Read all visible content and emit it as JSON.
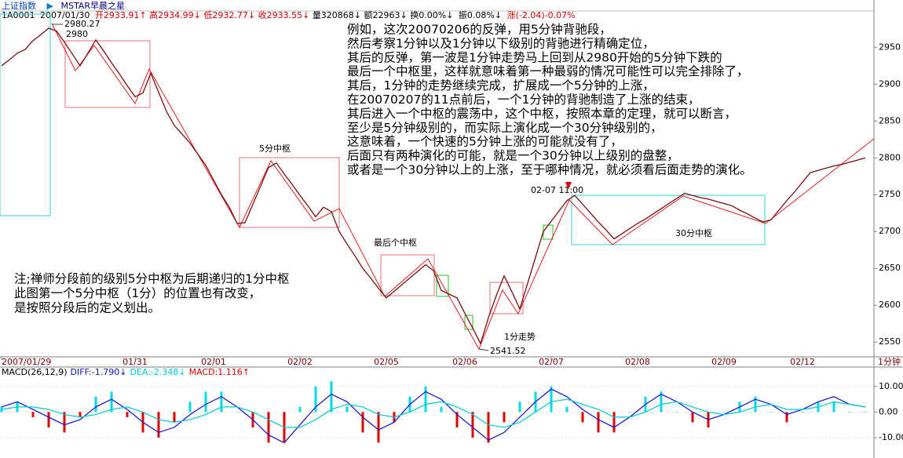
{
  "header": {
    "index_name": "上证指数",
    "arrow": "▶",
    "indicator": "MSTAR早晨之星",
    "quote": {
      "code": "1A0001",
      "date": "2007/01/30",
      "open": "开2933.91↑",
      "high": "高2934.99↓",
      "low": "低2932.77↓",
      "close": "收2933.55↓",
      "volume": "量320868↓",
      "amount": "额22963↓",
      "turnover": "换0.00%↓",
      "amplitude": "振0.08%↓",
      "change": "涨(-2.04)-0.07%"
    }
  },
  "chart_data": [
    {
      "type": "line",
      "period": "1分钟",
      "categories": [
        "2007/01/29",
        null,
        null,
        null,
        null,
        null,
        null,
        null,
        null,
        null,
        null,
        null,
        null,
        null,
        null,
        null,
        null,
        "01/31",
        null,
        null,
        null,
        null,
        null,
        null,
        null,
        null,
        null,
        "02/01",
        null,
        null,
        null,
        null,
        null,
        null,
        null,
        null,
        null,
        null,
        "02/02",
        null,
        null,
        null,
        null,
        null,
        null,
        null,
        null,
        null,
        null,
        "02/05",
        null,
        null,
        null,
        null,
        null,
        null,
        null,
        null,
        null,
        "02/06",
        null,
        null,
        null,
        null,
        null,
        null,
        null,
        null,
        null,
        null,
        "02/07",
        null,
        null,
        null,
        null,
        null,
        null,
        null,
        null,
        null,
        null,
        "02/08",
        null,
        null,
        null,
        null,
        null,
        null,
        null,
        null,
        null,
        null,
        "02/09",
        null,
        null,
        null,
        null,
        null,
        null,
        null,
        null,
        null,
        "02/12",
        null,
        null,
        null,
        null,
        null,
        null,
        null,
        null
      ],
      "series": [
        {
          "name": "上证指数",
          "color": "#7a1010",
          "values": [
            2925,
            2933,
            2942,
            2947,
            2959,
            2967,
            2976,
            2972,
            2957,
            2941,
            2925,
            2942,
            2960,
            2945,
            2929,
            2914,
            2898,
            2883,
            2888,
            2915,
            2889,
            2863,
            2844,
            2832,
            2820,
            2805,
            2790,
            2770,
            2750,
            2733,
            2711,
            2712,
            2737,
            2762,
            2787,
            2793,
            2778,
            2764,
            2749,
            2735,
            2720,
            2733,
            2727,
            2700,
            2683,
            2667,
            2650,
            2637,
            2623,
            2610,
            2619,
            2628,
            2637,
            2646,
            2655,
            2647,
            2620,
            2615,
            2610,
            2589,
            2569,
            2548,
            2583,
            2613,
            2640,
            2618,
            2595,
            2630,
            2665,
            2700,
            2714,
            2728,
            2742,
            2749,
            2737,
            2725,
            2713,
            2702,
            2690,
            2697,
            2704,
            2711,
            2717,
            2724,
            2731,
            2738,
            2745,
            2752,
            2749,
            2746,
            2744,
            2741,
            2738,
            2735,
            2729,
            2724,
            2718,
            2713,
            2716,
            2729,
            2742,
            2754,
            2767,
            2780,
            2783,
            2786,
            2789,
            2791,
            2794,
            2797,
            2800
          ]
        }
      ],
      "ylim": [
        2530,
        2995
      ],
      "yticks": [
        2550,
        2600,
        2650,
        2700,
        2750,
        2800,
        2850,
        2900,
        2950
      ],
      "annotations": {
        "commentary": [
          "例如，这次20070206的反弹，用5分钟背驰段，",
          "然后考察1分钟以及1分钟以下级别的背驰进行精确定位，",
          "其后的反弹，第一波是1分钟走势马上回到从2980开始的5分钟下跌的",
          "最后一个中枢里，这样就意味着第一种最弱的情况可能性可以完全排除了，",
          "其后，1分钟的走势继续完成，扩展成一个5分钟的上涨，",
          "在20070207的11点前后，一个1分钟的背驰制造了上涨的结束，",
          "其后进入一个中枢的震荡中，这个中枢，按照本章的定理，就可以断言，",
          "至少是5分钟级别的，而实际上演化成一个30分钟级别的，",
          "这意味着，一个快速的5分钟上涨的可能就没有了，",
          "后面只有两种演化的可能，就是一个30分钟以上级别的盘整，",
          "或者是一个30分钟以上的上涨，至于哪种情况，就必须看后面走势的演化。"
        ],
        "note": [
          "注;禅师分段前的级别5分中枢为后期递归的1分中枢",
          "此图第一个5分中枢（1分）的位置也有改变，",
          "是按照分段后的定义划出。"
        ],
        "labels": [
          "2980.27",
          "2980",
          "5分中枢",
          "最后个中枢",
          "02-07 11:00",
          "30分中枢",
          "1分走势",
          "2541.52"
        ]
      }
    },
    {
      "type": "macd",
      "title": "MACD(26,12,9)",
      "series": [
        {
          "name": "DIFF:-1.790↓",
          "color": "#1010d0",
          "values": [
            2,
            4,
            1,
            -2,
            -5,
            -3,
            2,
            5,
            1,
            -4,
            -8,
            -6,
            -1,
            3,
            6,
            2,
            -3,
            -9,
            -12,
            -5,
            2,
            7,
            4,
            -2,
            -7,
            -4,
            3,
            8,
            5,
            -1,
            -6,
            -11,
            -8,
            -2,
            4,
            9,
            6,
            1,
            -3,
            -6,
            -2,
            3,
            7,
            4,
            0,
            -3,
            -1,
            2,
            5,
            3,
            -1,
            1,
            4,
            6,
            3,
            2
          ]
        },
        {
          "name": "DEA:-2.348↓",
          "color": "#00c8d8",
          "values": [
            1,
            2,
            2,
            1,
            -1,
            -2,
            -1,
            1,
            2,
            0,
            -3,
            -4,
            -3,
            -1,
            2,
            2,
            0,
            -3,
            -6,
            -6,
            -3,
            1,
            3,
            2,
            -1,
            -2,
            0,
            3,
            4,
            2,
            -1,
            -5,
            -6,
            -4,
            0,
            4,
            5,
            3,
            1,
            -2,
            -2,
            0,
            3,
            4,
            2,
            0,
            -1,
            0,
            2,
            3,
            1,
            1,
            2,
            4,
            3,
            2
          ]
        },
        {
          "name": "MACD:1.116↑",
          "colors": [
            "#00d8e8",
            "#e00000"
          ],
          "values": [
            2,
            4,
            -2,
            -6,
            -8,
            -2,
            6,
            8,
            -2,
            -8,
            -10,
            -4,
            4,
            8,
            8,
            0,
            -6,
            -12,
            -12,
            2,
            10,
            12,
            2,
            -8,
            -12,
            -4,
            6,
            10,
            2,
            -6,
            -10,
            -12,
            -4,
            4,
            8,
            10,
            2,
            -4,
            -8,
            -8,
            0,
            6,
            8,
            0,
            -4,
            -6,
            0,
            4,
            6,
            0,
            -4,
            0,
            4,
            4,
            0,
            0
          ]
        }
      ],
      "ylim": [
        -18,
        17
      ],
      "yticks": [
        {
          "value": 10,
          "label": "10.00"
        },
        {
          "value": 0,
          "label": "0.00"
        },
        {
          "value": -10,
          "label": "-10.00"
        }
      ]
    }
  ]
}
